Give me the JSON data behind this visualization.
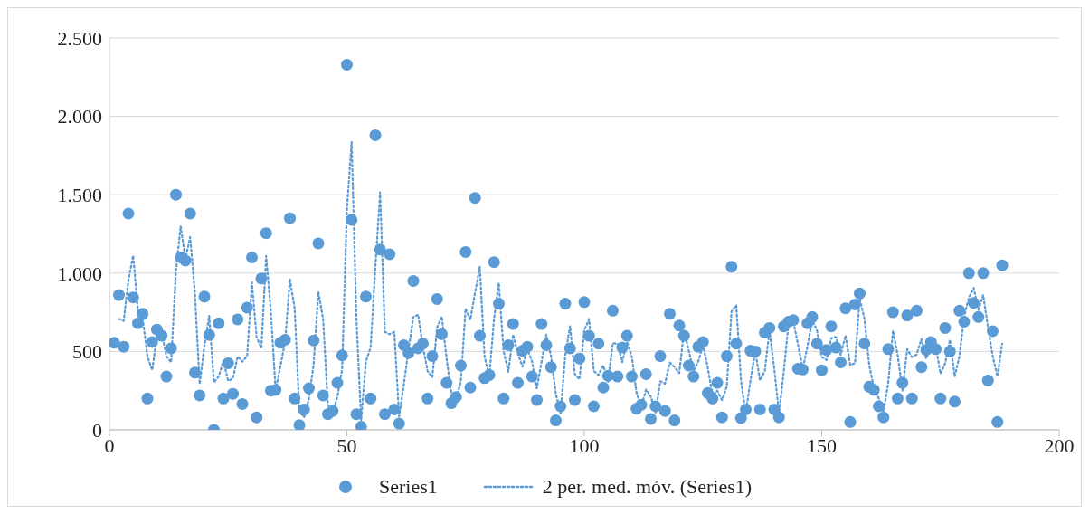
{
  "chart_data": {
    "type": "scatter",
    "x": [
      1,
      2,
      3,
      4,
      5,
      6,
      7,
      8,
      9,
      10,
      11,
      12,
      13,
      14,
      15,
      16,
      17,
      18,
      19,
      20,
      21,
      22,
      23,
      24,
      25,
      26,
      27,
      28,
      29,
      30,
      31,
      32,
      33,
      34,
      35,
      36,
      37,
      38,
      39,
      40,
      41,
      42,
      43,
      44,
      45,
      46,
      47,
      48,
      49,
      50,
      51,
      52,
      53,
      54,
      55,
      56,
      57,
      58,
      59,
      60,
      61,
      62,
      63,
      64,
      65,
      66,
      67,
      68,
      69,
      70,
      71,
      72,
      73,
      74,
      75,
      76,
      77,
      78,
      79,
      80,
      81,
      82,
      83,
      84,
      85,
      86,
      87,
      88,
      89,
      90,
      91,
      92,
      93,
      94,
      95,
      96,
      97,
      98,
      99,
      100,
      101,
      102,
      103,
      104,
      105,
      106,
      107,
      108,
      109,
      110,
      111,
      112,
      113,
      114,
      115,
      116,
      117,
      118,
      119,
      120,
      121,
      122,
      123,
      124,
      125,
      126,
      127,
      128,
      129,
      130,
      131,
      132,
      133,
      134,
      135,
      136,
      137,
      138,
      139,
      140,
      141,
      142,
      143,
      144,
      145,
      146,
      147,
      148,
      149,
      150,
      151,
      152,
      153,
      154,
      155,
      156,
      157,
      158,
      159,
      160,
      161,
      162,
      163,
      164,
      165,
      166,
      167,
      168,
      169,
      170,
      171,
      172,
      173,
      174,
      175,
      176,
      177,
      178,
      179,
      180,
      181,
      182,
      183,
      184,
      185,
      186,
      187,
      188
    ],
    "series": [
      {
        "name": "Series1",
        "color": "#5b9bd5",
        "marker": "circle",
        "values": [
          555,
          860,
          530,
          1380,
          845,
          680,
          740,
          200,
          560,
          640,
          600,
          340,
          520,
          1500,
          1100,
          1080,
          1380,
          365,
          220,
          850,
          605,
          0,
          680,
          200,
          425,
          230,
          705,
          165,
          780,
          1100,
          80,
          965,
          1255,
          250,
          255,
          555,
          575,
          1350,
          200,
          30,
          130,
          265,
          570,
          1190,
          220,
          100,
          120,
          300,
          475,
          2330,
          1340,
          100,
          20,
          850,
          200,
          1880,
          1150,
          100,
          1120,
          130,
          40,
          540,
          490,
          950,
          520,
          550,
          200,
          470,
          835,
          610,
          300,
          170,
          210,
          410,
          1135,
          270,
          1480,
          600,
          330,
          350,
          1070,
          805,
          200,
          540,
          675,
          300,
          505,
          530,
          340,
          190,
          675,
          540,
          400,
          60,
          150,
          805,
          520,
          190,
          455,
          815,
          600,
          150,
          550,
          270,
          345,
          760,
          340,
          525,
          600,
          340,
          135,
          160,
          355,
          70,
          150,
          470,
          120,
          740,
          60,
          665,
          600,
          410,
          340,
          530,
          560,
          235,
          200,
          300,
          80,
          470,
          1040,
          550,
          75,
          130,
          505,
          500,
          130,
          620,
          650,
          130,
          80,
          660,
          690,
          700,
          390,
          385,
          680,
          720,
          550,
          380,
          510,
          660,
          525,
          430,
          775,
          50,
          800,
          870,
          550,
          275,
          255,
          150,
          80,
          515,
          750,
          200,
          300,
          730,
          200,
          760,
          400,
          510,
          560,
          515,
          200,
          650,
          500,
          180,
          760,
          690,
          1000,
          810,
          720,
          1000,
          315,
          630,
          50,
          1050
        ]
      },
      {
        "name": "2 per. med. móv. (Series1)",
        "type": "line",
        "color": "#5b9bd5",
        "marker": "none",
        "line_style": "dotted",
        "values": [
          null,
          707.5,
          695,
          955,
          1112.5,
          762.5,
          710,
          470,
          380,
          600,
          620,
          470,
          430,
          1010,
          1300,
          1090,
          1230,
          872.5,
          292.5,
          535,
          727.5,
          302.5,
          340,
          440,
          312.5,
          327.5,
          467.5,
          435,
          472.5,
          940,
          590,
          522.5,
          1110,
          752.5,
          252.5,
          405,
          565,
          962.5,
          775,
          115,
          80,
          197.5,
          417.5,
          880,
          705,
          160,
          110,
          210,
          387.5,
          1402.5,
          1835,
          720,
          60,
          435,
          525,
          1040,
          1515,
          625,
          610,
          625,
          85,
          290,
          515,
          720,
          735,
          535,
          375,
          335,
          652.5,
          722.5,
          455,
          235,
          190,
          310,
          772.5,
          702.5,
          875,
          1040,
          465,
          340,
          710,
          937.5,
          502.5,
          370,
          607.5,
          487.5,
          402.5,
          517.5,
          435,
          265,
          432.5,
          607.5,
          470,
          230,
          105,
          477.5,
          662.5,
          355,
          322.5,
          635,
          707.5,
          375,
          350,
          410,
          307.5,
          552.5,
          550,
          432.5,
          562.5,
          470,
          237.5,
          147.5,
          257.5,
          212.5,
          110,
          310,
          295,
          430,
          400,
          362.5,
          632.5,
          505,
          375,
          435,
          545,
          397.5,
          217.5,
          250,
          190,
          275,
          755,
          795,
          312.5,
          102.5,
          317.5,
          502.5,
          315,
          375,
          635,
          390,
          105,
          370,
          675,
          695,
          545,
          387.5,
          532.5,
          700,
          635,
          465,
          445,
          585,
          592.5,
          477.5,
          602.5,
          412.5,
          425,
          835,
          710,
          412.5,
          265,
          202.5,
          115,
          297.5,
          632.5,
          475,
          250,
          515,
          465,
          480,
          580,
          455,
          535,
          537.5,
          357.5,
          425,
          575,
          340,
          470,
          725,
          845,
          905,
          765,
          860,
          657.5,
          472.5,
          340,
          550
        ]
      }
    ],
    "xlim": [
      0,
      200
    ],
    "xticks": [
      0,
      50,
      100,
      150,
      200
    ],
    "ylim": [
      0,
      2500
    ],
    "yticks": [
      {
        "value": 0,
        "label": "0"
      },
      {
        "value": 500,
        "label": "500"
      },
      {
        "value": 1000,
        "label": "1.000"
      },
      {
        "value": 1500,
        "label": "1.500"
      },
      {
        "value": 2000,
        "label": "2.000"
      },
      {
        "value": 2500,
        "label": "2.500"
      }
    ],
    "grid": "y",
    "legend": "bottom"
  }
}
